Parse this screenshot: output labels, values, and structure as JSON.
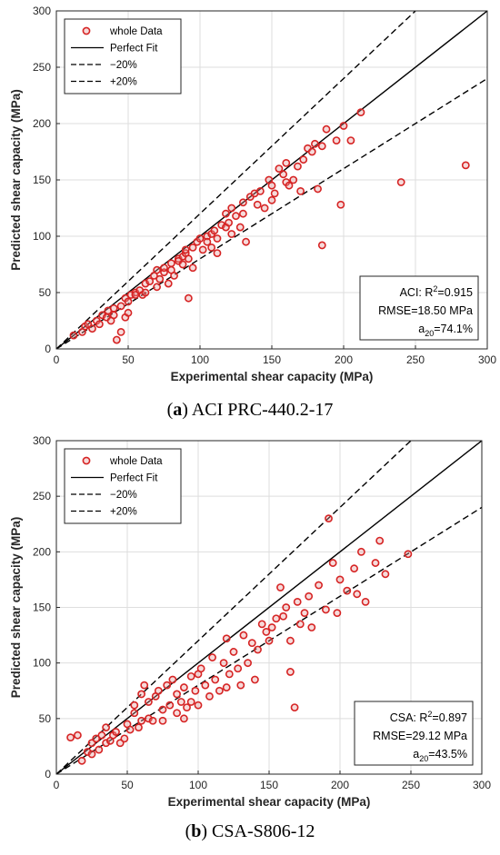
{
  "chart_data": [
    {
      "type": "scatter",
      "caption_label": "a",
      "caption_text": "ACI PRC-440.2-17",
      "xlabel": "Experimental shear capacity (MPa)",
      "ylabel": "Predicted shear capacity (MPa)",
      "xlim": [
        0,
        300
      ],
      "ylim": [
        0,
        300
      ],
      "xticks": [
        0,
        50,
        100,
        150,
        200,
        250,
        300
      ],
      "yticks": [
        0,
        50,
        100,
        150,
        200,
        250,
        300
      ],
      "grid": true,
      "legend_position": "top-left",
      "legend": [
        {
          "label": "whole Data",
          "style": "marker"
        },
        {
          "label": "Perfect Fit",
          "style": "solid"
        },
        {
          "label": "−20%",
          "style": "dashed"
        },
        {
          "label": "+20%",
          "style": "dashed"
        }
      ],
      "stats": {
        "label": "ACI",
        "r2": "0.915",
        "rmse": "18.50 MPa",
        "a20": "74.1%"
      },
      "lines": [
        {
          "name": "Perfect Fit",
          "slope": 1.0
        },
        {
          "name": "−20%",
          "slope": 0.8
        },
        {
          "name": "+20%",
          "slope": 1.2
        }
      ],
      "marker_color": "#d62424",
      "series": [
        {
          "name": "whole Data",
          "points": [
            [
              12,
              12
            ],
            [
              18,
              15
            ],
            [
              20,
              20
            ],
            [
              22,
              22
            ],
            [
              25,
              18
            ],
            [
              28,
              25
            ],
            [
              30,
              22
            ],
            [
              32,
              30
            ],
            [
              35,
              28
            ],
            [
              36,
              34
            ],
            [
              38,
              25
            ],
            [
              40,
              36
            ],
            [
              40,
              30
            ],
            [
              42,
              8
            ],
            [
              45,
              38
            ],
            [
              45,
              15
            ],
            [
              48,
              28
            ],
            [
              48,
              45
            ],
            [
              50,
              42
            ],
            [
              50,
              32
            ],
            [
              52,
              48
            ],
            [
              55,
              50
            ],
            [
              55,
              48
            ],
            [
              58,
              52
            ],
            [
              60,
              48
            ],
            [
              62,
              58
            ],
            [
              62,
              50
            ],
            [
              65,
              60
            ],
            [
              68,
              65
            ],
            [
              70,
              55
            ],
            [
              70,
              70
            ],
            [
              72,
              62
            ],
            [
              75,
              68
            ],
            [
              75,
              72
            ],
            [
              78,
              58
            ],
            [
              80,
              70
            ],
            [
              80,
              76
            ],
            [
              82,
              65
            ],
            [
              85,
              80
            ],
            [
              85,
              78
            ],
            [
              88,
              75
            ],
            [
              88,
              82
            ],
            [
              90,
              85
            ],
            [
              90,
              88
            ],
            [
              92,
              45
            ],
            [
              92,
              80
            ],
            [
              95,
              90
            ],
            [
              95,
              72
            ],
            [
              98,
              95
            ],
            [
              100,
              98
            ],
            [
              102,
              88
            ],
            [
              105,
              100
            ],
            [
              105,
              95
            ],
            [
              108,
              102
            ],
            [
              108,
              90
            ],
            [
              110,
              105
            ],
            [
              112,
              98
            ],
            [
              112,
              85
            ],
            [
              115,
              110
            ],
            [
              118,
              108
            ],
            [
              118,
              120
            ],
            [
              120,
              112
            ],
            [
              122,
              102
            ],
            [
              122,
              125
            ],
            [
              125,
              118
            ],
            [
              128,
              108
            ],
            [
              130,
              130
            ],
            [
              130,
              120
            ],
            [
              132,
              95
            ],
            [
              135,
              135
            ],
            [
              138,
              138
            ],
            [
              140,
              128
            ],
            [
              142,
              140
            ],
            [
              145,
              125
            ],
            [
              148,
              150
            ],
            [
              150,
              145
            ],
            [
              150,
              132
            ],
            [
              152,
              138
            ],
            [
              155,
              160
            ],
            [
              158,
              155
            ],
            [
              160,
              148
            ],
            [
              160,
              165
            ],
            [
              162,
              145
            ],
            [
              165,
              150
            ],
            [
              168,
              162
            ],
            [
              170,
              140
            ],
            [
              172,
              168
            ],
            [
              175,
              178
            ],
            [
              178,
              175
            ],
            [
              180,
              182
            ],
            [
              182,
              142
            ],
            [
              185,
              180
            ],
            [
              185,
              92
            ],
            [
              188,
              195
            ],
            [
              195,
              185
            ],
            [
              198,
              128
            ],
            [
              200,
              198
            ],
            [
              205,
              185
            ],
            [
              212,
              210
            ],
            [
              240,
              148
            ],
            [
              285,
              163
            ]
          ]
        }
      ]
    },
    {
      "type": "scatter",
      "caption_label": "b",
      "caption_text": "CSA-S806-12",
      "xlabel": "Experimental shear capacity (MPa)",
      "ylabel": "Predicted shear capacity (MPa)",
      "xlim": [
        0,
        300
      ],
      "ylim": [
        0,
        300
      ],
      "xticks": [
        0,
        50,
        100,
        150,
        200,
        250,
        300
      ],
      "yticks": [
        0,
        50,
        100,
        150,
        200,
        250,
        300
      ],
      "grid": true,
      "legend_position": "top-left",
      "legend": [
        {
          "label": "whole Data",
          "style": "marker"
        },
        {
          "label": "Perfect Fit",
          "style": "solid"
        },
        {
          "label": "−20%",
          "style": "dashed"
        },
        {
          "label": "+20%",
          "style": "dashed"
        }
      ],
      "stats": {
        "label": "CSA",
        "r2": "0.897",
        "rmse": "29.12 MPa",
        "a20": "43.5%"
      },
      "lines": [
        {
          "name": "Perfect Fit",
          "slope": 1.0
        },
        {
          "name": "−20%",
          "slope": 0.8
        },
        {
          "name": "+20%",
          "slope": 1.2
        }
      ],
      "marker_color": "#d62424",
      "series": [
        {
          "name": "whole Data",
          "points": [
            [
              10,
              33
            ],
            [
              15,
              35
            ],
            [
              18,
              12
            ],
            [
              22,
              20
            ],
            [
              25,
              28
            ],
            [
              25,
              18
            ],
            [
              28,
              32
            ],
            [
              30,
              22
            ],
            [
              32,
              35
            ],
            [
              35,
              42
            ],
            [
              35,
              28
            ],
            [
              38,
              30
            ],
            [
              40,
              35
            ],
            [
              42,
              38
            ],
            [
              45,
              28
            ],
            [
              48,
              32
            ],
            [
              50,
              45
            ],
            [
              52,
              40
            ],
            [
              55,
              62
            ],
            [
              55,
              55
            ],
            [
              58,
              42
            ],
            [
              60,
              48
            ],
            [
              60,
              72
            ],
            [
              62,
              80
            ],
            [
              65,
              65
            ],
            [
              65,
              50
            ],
            [
              68,
              48
            ],
            [
              70,
              70
            ],
            [
              72,
              75
            ],
            [
              75,
              58
            ],
            [
              75,
              48
            ],
            [
              78,
              80
            ],
            [
              80,
              62
            ],
            [
              82,
              85
            ],
            [
              85,
              72
            ],
            [
              85,
              55
            ],
            [
              88,
              65
            ],
            [
              90,
              78
            ],
            [
              90,
              50
            ],
            [
              92,
              60
            ],
            [
              95,
              88
            ],
            [
              95,
              65
            ],
            [
              98,
              75
            ],
            [
              100,
              90
            ],
            [
              100,
              62
            ],
            [
              102,
              95
            ],
            [
              105,
              80
            ],
            [
              108,
              70
            ],
            [
              110,
              105
            ],
            [
              112,
              85
            ],
            [
              115,
              75
            ],
            [
              118,
              100
            ],
            [
              120,
              122
            ],
            [
              120,
              78
            ],
            [
              122,
              90
            ],
            [
              125,
              110
            ],
            [
              128,
              95
            ],
            [
              130,
              80
            ],
            [
              132,
              125
            ],
            [
              135,
              100
            ],
            [
              138,
              118
            ],
            [
              140,
              85
            ],
            [
              142,
              112
            ],
            [
              145,
              135
            ],
            [
              148,
              128
            ],
            [
              150,
              120
            ],
            [
              152,
              132
            ],
            [
              155,
              140
            ],
            [
              158,
              168
            ],
            [
              160,
              142
            ],
            [
              162,
              150
            ],
            [
              165,
              120
            ],
            [
              165,
              92
            ],
            [
              168,
              60
            ],
            [
              170,
              155
            ],
            [
              172,
              135
            ],
            [
              175,
              145
            ],
            [
              178,
              160
            ],
            [
              180,
              132
            ],
            [
              185,
              170
            ],
            [
              190,
              148
            ],
            [
              192,
              230
            ],
            [
              195,
              190
            ],
            [
              198,
              145
            ],
            [
              200,
              175
            ],
            [
              205,
              165
            ],
            [
              210,
              185
            ],
            [
              212,
              162
            ],
            [
              215,
              200
            ],
            [
              218,
              155
            ],
            [
              225,
              190
            ],
            [
              228,
              210
            ],
            [
              232,
              180
            ],
            [
              248,
              198
            ]
          ]
        }
      ]
    }
  ]
}
